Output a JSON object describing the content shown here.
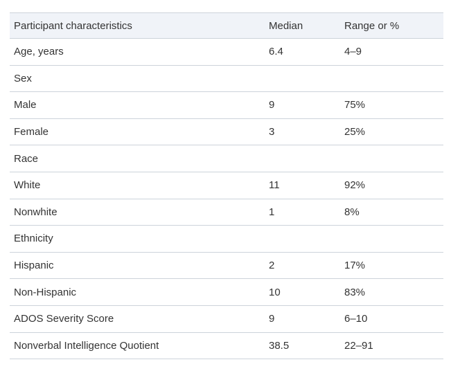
{
  "colors": {
    "header_bg": "#f0f3f8",
    "border": "#ccd3da",
    "text": "#333333",
    "page_bg": "#ffffff"
  },
  "table": {
    "columns": [
      "Participant characteristics",
      "Median",
      "Range or %"
    ],
    "rows": [
      {
        "label": "Age, years",
        "median": "6.4",
        "range": "4–9"
      },
      {
        "label": "Sex",
        "median": "",
        "range": ""
      },
      {
        "label": "Male",
        "median": "9",
        "range": "75%"
      },
      {
        "label": "Female",
        "median": "3",
        "range": "25%"
      },
      {
        "label": "Race",
        "median": "",
        "range": ""
      },
      {
        "label": "White",
        "median": "11",
        "range": "92%"
      },
      {
        "label": "Nonwhite",
        "median": "1",
        "range": "8%"
      },
      {
        "label": "Ethnicity",
        "median": "",
        "range": ""
      },
      {
        "label": "Hispanic",
        "median": "2",
        "range": "17%"
      },
      {
        "label": "Non-Hispanic",
        "median": "10",
        "range": "83%"
      },
      {
        "label": "ADOS Severity Score",
        "median": "9",
        "range": "6–10"
      },
      {
        "label": "Nonverbal Intelligence Quotient",
        "median": "38.5",
        "range": "22–91"
      }
    ]
  }
}
